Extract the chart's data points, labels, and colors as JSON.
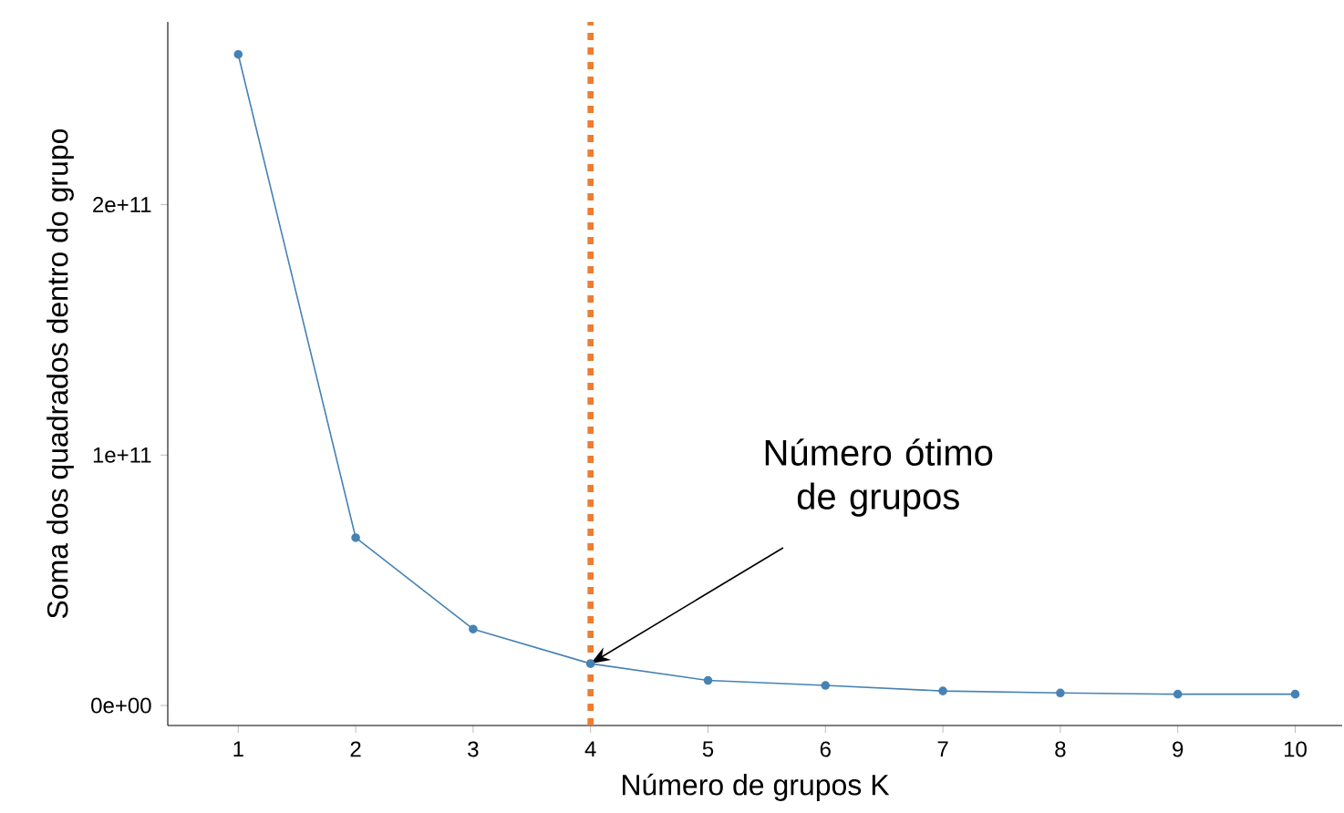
{
  "chart_data": {
    "type": "line",
    "xlabel": "Número de grupos K",
    "ylabel": "Soma dos quadrados dentro do grupo",
    "x": [
      1,
      2,
      3,
      4,
      5,
      6,
      7,
      8,
      9,
      10
    ],
    "series": [
      {
        "color": "#4682b4",
        "values": [
          260000000000,
          67000000000,
          30500000000,
          16700000000,
          10000000000,
          8000000000,
          5800000000,
          5000000000,
          4500000000,
          4500000000
        ]
      }
    ],
    "xlim": [
      0.4,
      10.4
    ],
    "ylim": [
      -8000000000,
      273000000000
    ],
    "xticks": [
      1,
      2,
      3,
      4,
      5,
      6,
      7,
      8,
      9,
      10
    ],
    "yticks": [
      {
        "value": 0,
        "label": "0e+00"
      },
      {
        "value": 100000000000,
        "label": "1e+11"
      },
      {
        "value": 200000000000,
        "label": "2e+11"
      }
    ],
    "ref_lines": [
      {
        "axis": "x",
        "value": 4,
        "color": "#ed7d31",
        "line_style": "dashed"
      }
    ],
    "annotations": [
      {
        "text": "Número ótimo de grupos",
        "x": 4,
        "y": 16700000000
      }
    ],
    "marker": "circle"
  }
}
